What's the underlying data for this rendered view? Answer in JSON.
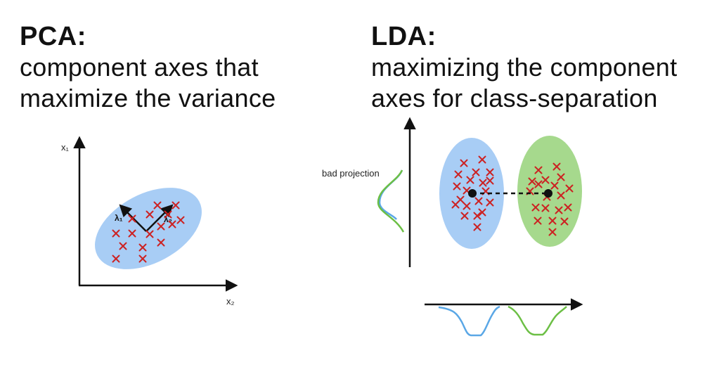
{
  "pca": {
    "heading": "PCA:",
    "subtitle_line1": "component axes that",
    "subtitle_line2": "maximize the variance",
    "x_axis_label": "x₂",
    "y_axis_label": "x₁",
    "eigen_label_1": "λ₁",
    "eigen_label_2": "λ₂"
  },
  "lda": {
    "heading": "LDA:",
    "subtitle_line1": "maximizing the component",
    "subtitle_line2": "axes for class-separation",
    "bad_projection_label": "bad projection"
  },
  "colors": {
    "class_blue": "#a8cdf5",
    "class_green": "#a6d98d",
    "marker_red": "#cc2222",
    "curve_blue": "#5aa7e6",
    "curve_green": "#6cbf45",
    "axis": "#111111"
  }
}
